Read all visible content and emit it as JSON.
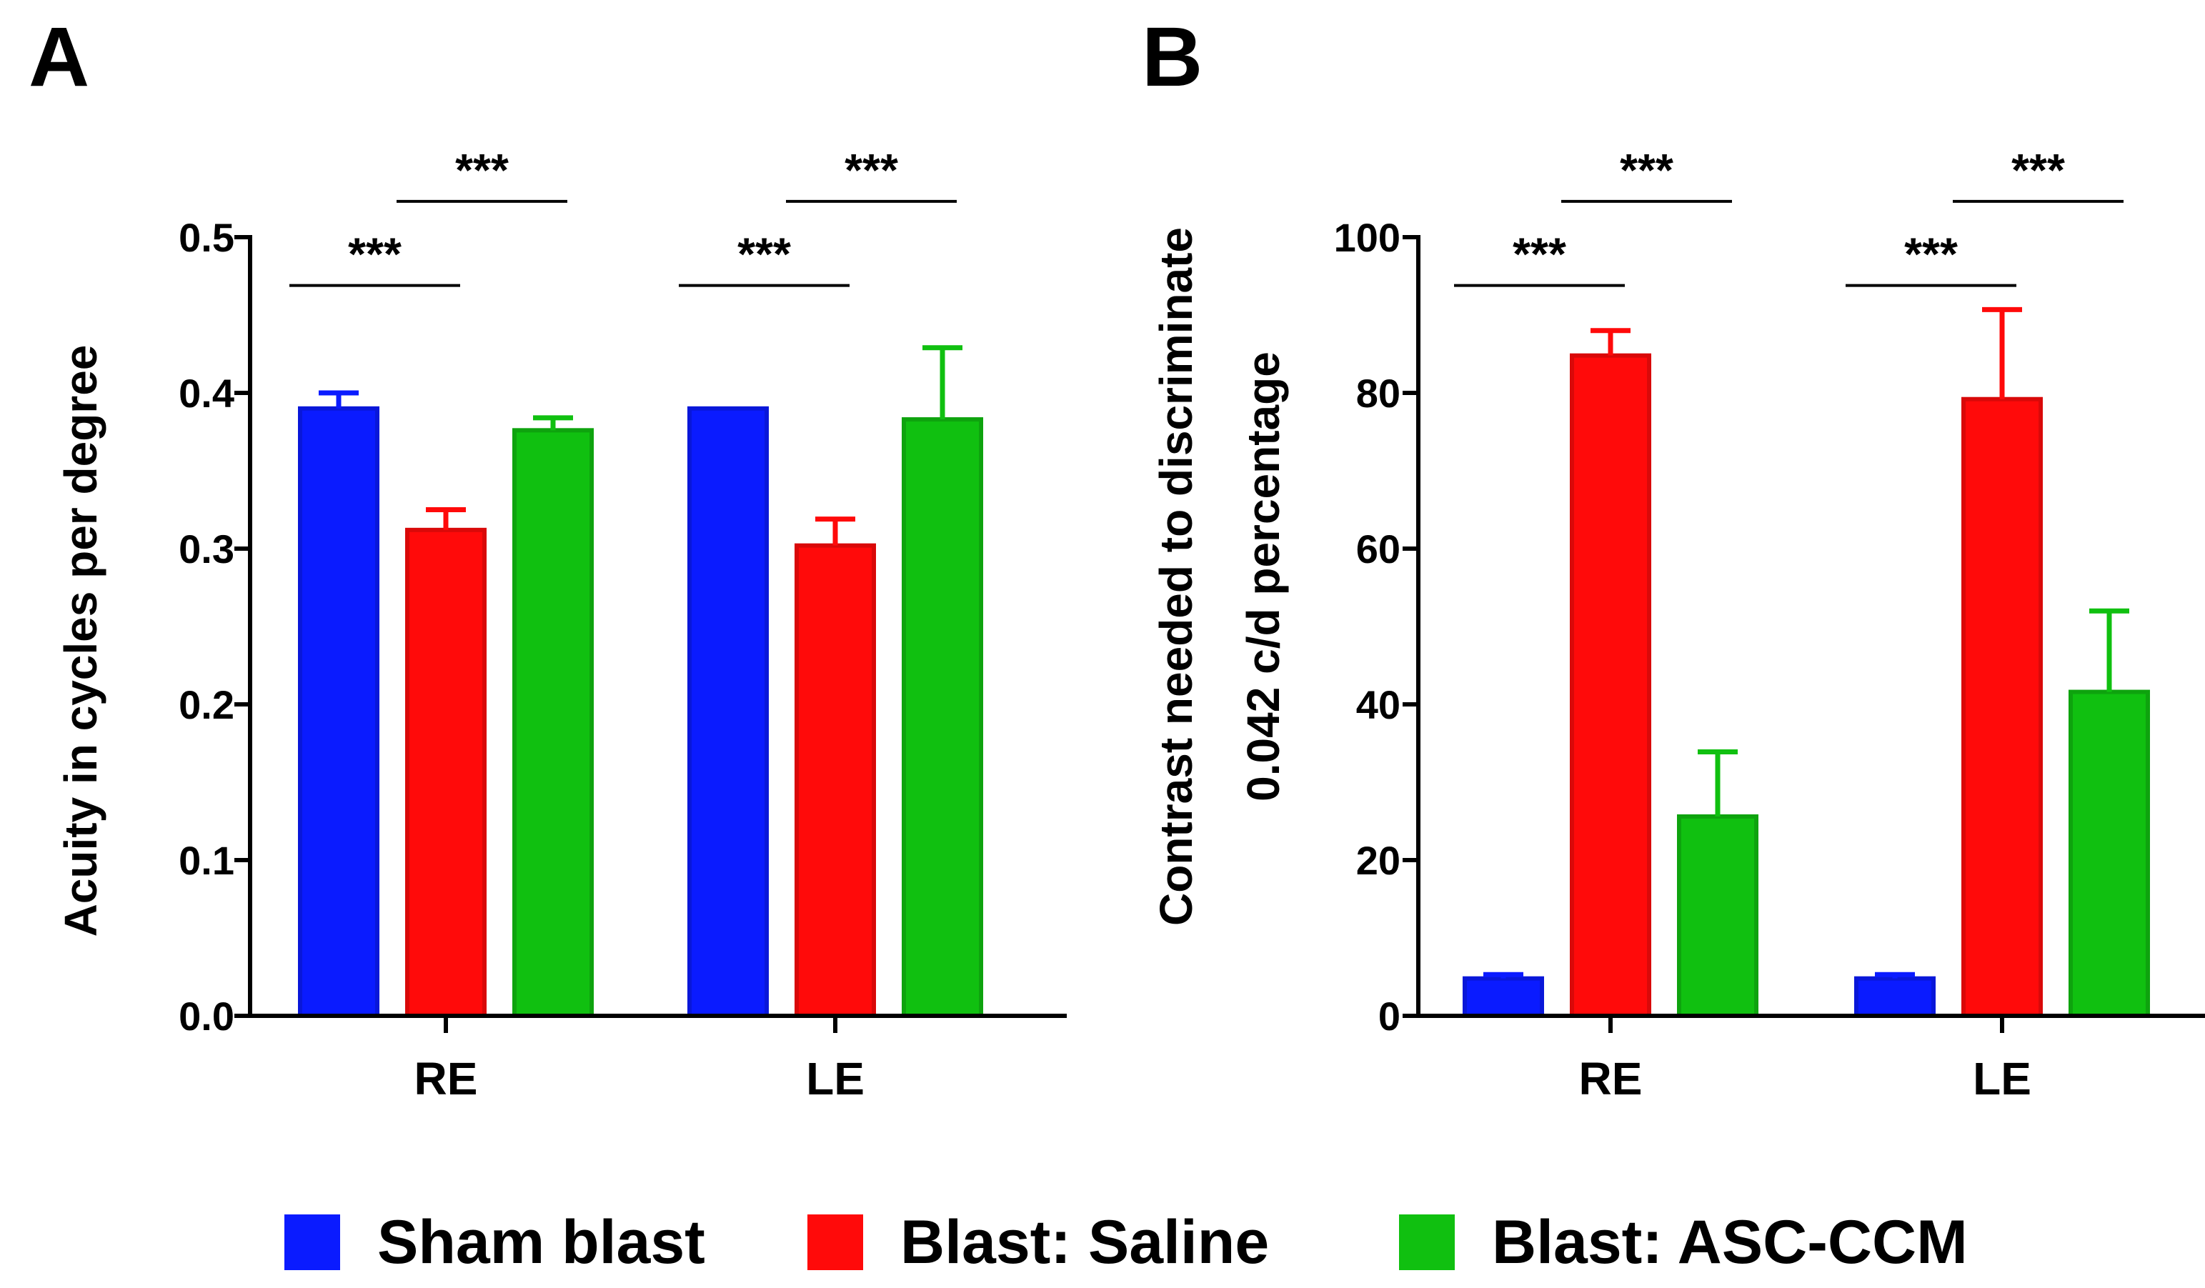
{
  "legend": [
    {
      "label": "Sham blast",
      "color": "#0a1bff"
    },
    {
      "label": "Blast: Saline",
      "color": "#ff0a0a"
    },
    {
      "label": "Blast: ASC-CCM",
      "color": "#10c010"
    }
  ],
  "chart_data": [
    {
      "type": "bar",
      "panel_label": "A",
      "categories": [
        "RE",
        "LE"
      ],
      "ylabel": "Acuity in cycles per degree",
      "ylim": [
        0,
        0.5
      ],
      "yticks": [
        "0.0",
        "0.1",
        "0.2",
        "0.3",
        "0.4",
        "0.5"
      ],
      "series": [
        {
          "name": "Sham blast",
          "values": [
            0.39,
            0.39
          ],
          "errors": [
            0.01,
            0.0
          ]
        },
        {
          "name": "Blast: Saline",
          "values": [
            0.312,
            0.302
          ],
          "errors": [
            0.013,
            0.017
          ]
        },
        {
          "name": "Blast: ASC-CCM",
          "values": [
            0.376,
            0.383
          ],
          "errors": [
            0.008,
            0.046
          ]
        }
      ],
      "significance": [
        {
          "category": "RE",
          "from": 0,
          "to": 1,
          "label": "***",
          "y": 0.469
        },
        {
          "category": "RE",
          "from": 1,
          "to": 2,
          "label": "***",
          "y": 0.523
        },
        {
          "category": "LE",
          "from": 0,
          "to": 1,
          "label": "***",
          "y": 0.469
        },
        {
          "category": "LE",
          "from": 1,
          "to": 2,
          "label": "***",
          "y": 0.523
        }
      ]
    },
    {
      "type": "bar",
      "panel_label": "B",
      "categories": [
        "RE",
        "LE"
      ],
      "ylabel": "Contrast needed to discriminate\n0.042 c/d percentage",
      "ylabel_lines": [
        "Contrast needed to discriminate",
        "0.042 c/d percentage"
      ],
      "ylim": [
        0,
        100
      ],
      "yticks": [
        "0",
        "20",
        "40",
        "60",
        "80",
        "100"
      ],
      "series": [
        {
          "name": "Sham blast",
          "values": [
            4.8,
            4.8
          ],
          "errors": [
            0.5,
            0.5
          ]
        },
        {
          "name": "Blast: Saline",
          "values": [
            84.8,
            79.2
          ],
          "errors": [
            3.2,
            11.5
          ]
        },
        {
          "name": "Blast: ASC-CCM",
          "values": [
            25.6,
            41.6
          ],
          "errors": [
            8.3,
            10.4
          ]
        }
      ],
      "significance": [
        {
          "category": "RE",
          "from": 0,
          "to": 1,
          "label": "***",
          "y": 93.8
        },
        {
          "category": "RE",
          "from": 1,
          "to": 2,
          "label": "***",
          "y": 104.6
        },
        {
          "category": "LE",
          "from": 0,
          "to": 1,
          "label": "***",
          "y": 93.8
        },
        {
          "category": "LE",
          "from": 1,
          "to": 2,
          "label": "***",
          "y": 104.6
        }
      ]
    }
  ]
}
